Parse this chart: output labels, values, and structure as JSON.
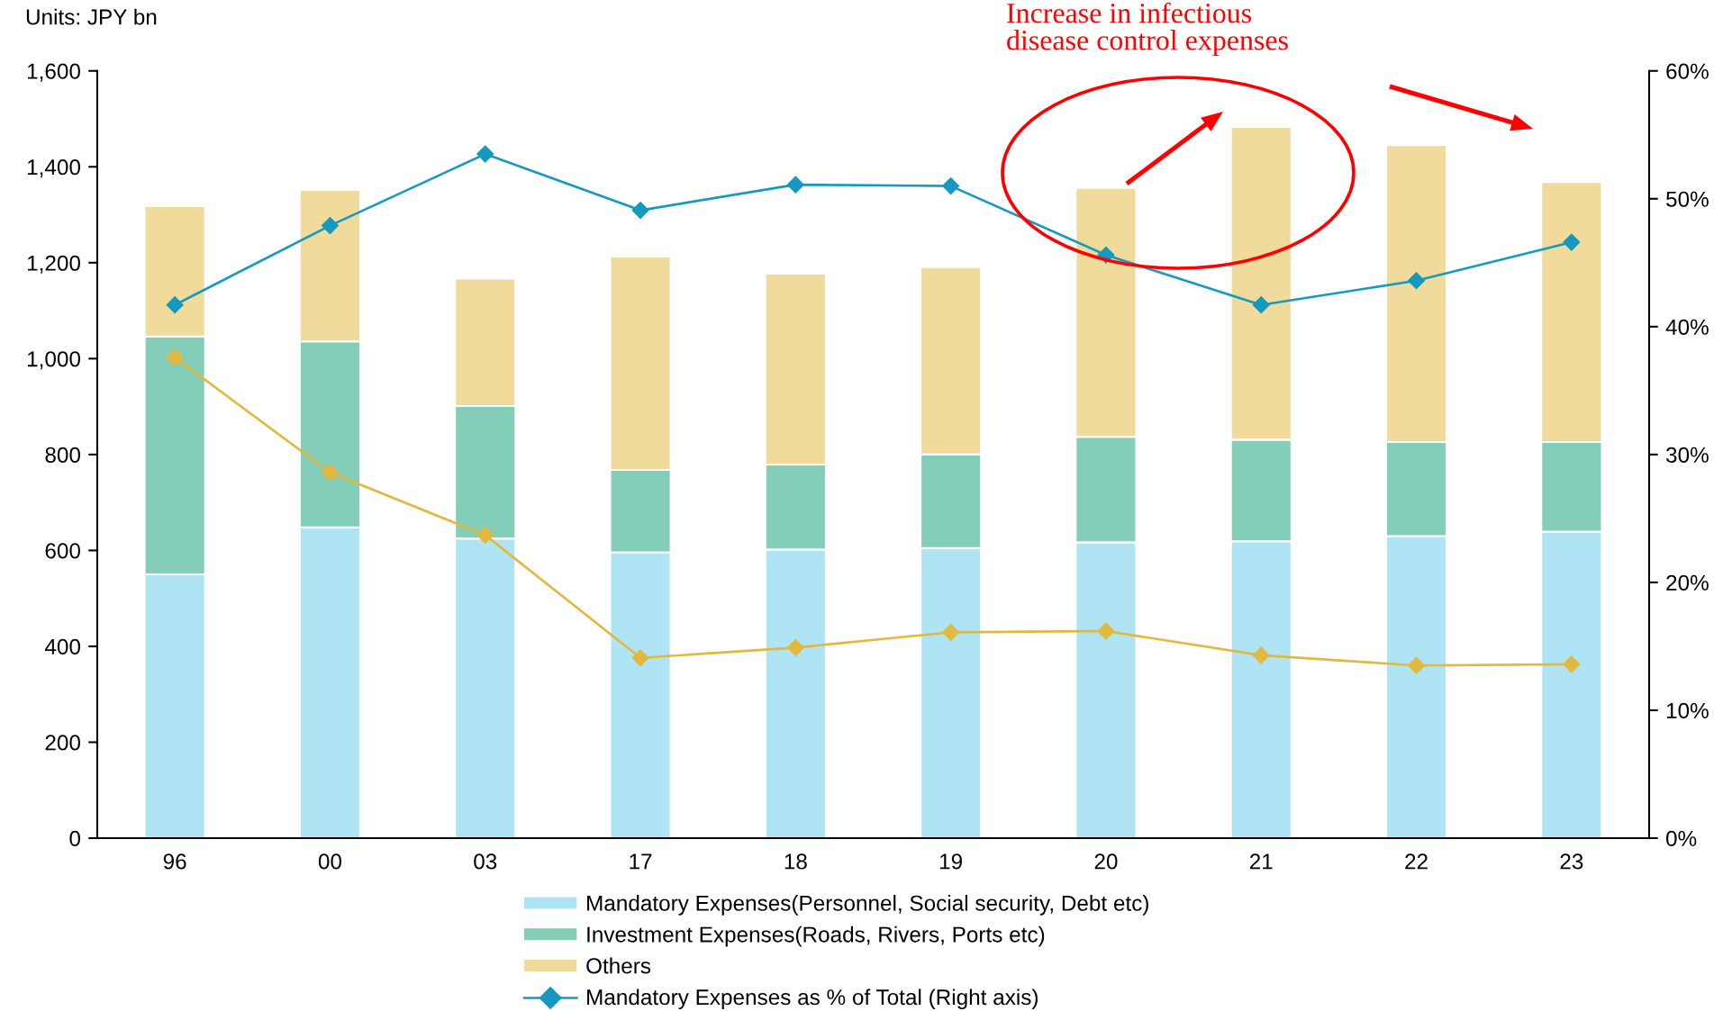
{
  "chart_data": {
    "type": "bar",
    "stacked": true,
    "annotations": [
      "Units: JPY bn",
      "Increase in infectious\ndisease control expenses"
    ],
    "categories": [
      "96",
      "00",
      "03",
      "17",
      "18",
      "19",
      "20",
      "21",
      "22",
      "23"
    ],
    "series": [
      {
        "name": "Mandatory Expenses(Personnel, Social security, Debt etc)",
        "color": "#afe4f5",
        "values": [
          550,
          648,
          625,
          596,
          602,
          605,
          617,
          619,
          630,
          639
        ]
      },
      {
        "name": "Investment Expenses(Roads, Rivers, Ports etc)",
        "color": "#84cdb8",
        "values": [
          496,
          388,
          276,
          172,
          177,
          195,
          220,
          212,
          196,
          187
        ]
      },
      {
        "name": "Others",
        "color": "#f0db9c",
        "values": [
          272,
          316,
          266,
          445,
          398,
          391,
          519,
          652,
          619,
          542
        ]
      },
      {
        "name": "Mandatory Expenses as % of Total (Right axis)",
        "type": "line",
        "axis": "y2",
        "marker": "diamond",
        "color": "#1699c0",
        "values": [
          41.7,
          47.9,
          53.5,
          49.1,
          51.1,
          51.0,
          45.6,
          41.7,
          43.6,
          46.6
        ]
      },
      {
        "type": "line",
        "axis": "y2",
        "marker": "diamond",
        "color": "#e2b83f",
        "values": [
          37.6,
          28.6,
          23.7,
          14.1,
          14.9,
          16.1,
          16.2,
          14.3,
          13.5,
          13.6
        ]
      }
    ],
    "ylim": [
      0,
      1600
    ],
    "yticks": [
      0,
      200,
      400,
      600,
      800,
      {
        "value": 1000,
        "label": "1,000"
      },
      {
        "value": 1200,
        "label": "1,200"
      },
      {
        "value": 1400,
        "label": "1,400"
      },
      {
        "value": 1600,
        "label": "1,600"
      }
    ],
    "y2lim": [
      0,
      60
    ],
    "y2ticks": [
      {
        "value": 0,
        "label": "0%"
      },
      {
        "value": 10,
        "label": "10%"
      },
      {
        "value": 20,
        "label": "20%"
      },
      {
        "value": 30,
        "label": "30%"
      },
      {
        "value": 40,
        "label": "40%"
      },
      {
        "value": 50,
        "label": "50%"
      },
      {
        "value": 60,
        "label": "60%"
      }
    ],
    "legend": "bottom"
  }
}
